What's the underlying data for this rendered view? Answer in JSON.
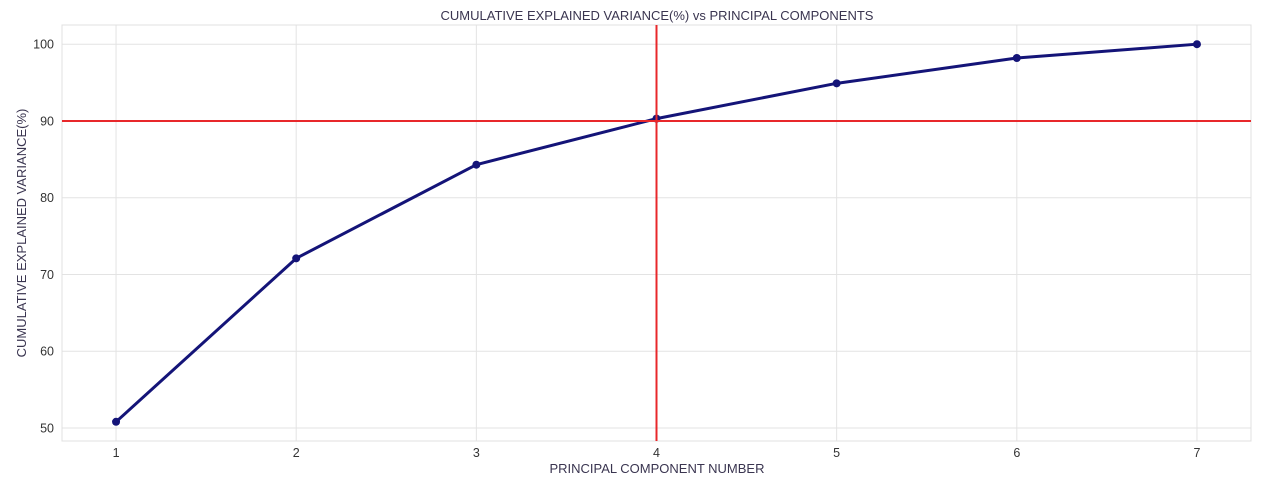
{
  "chart_data": {
    "type": "line",
    "title": "CUMULATIVE EXPLAINED VARIANCE(%) vs PRINCIPAL COMPONENTS",
    "xlabel": "PRINCIPAL COMPONENT NUMBER",
    "ylabel": "CUMULATIVE EXPLAINED VARIANCE(%)",
    "x": [
      1,
      2,
      3,
      4,
      5,
      6,
      7
    ],
    "series": [
      {
        "values": [
          50.8,
          72.1,
          84.3,
          90.3,
          94.9,
          98.2,
          100.0
        ],
        "color": "#141478"
      }
    ],
    "xlim": [
      0.7,
      7.3
    ],
    "ylim": [
      48.3,
      102.5
    ],
    "xticks": [
      1,
      2,
      3,
      4,
      5,
      6,
      7
    ],
    "yticks": [
      50,
      60,
      70,
      80,
      90,
      100
    ],
    "grid": true,
    "reference_lines": [
      {
        "axis": "y",
        "value": 90,
        "color": "#e8282b"
      },
      {
        "axis": "x",
        "value": 4,
        "color": "#e8282b"
      }
    ]
  }
}
